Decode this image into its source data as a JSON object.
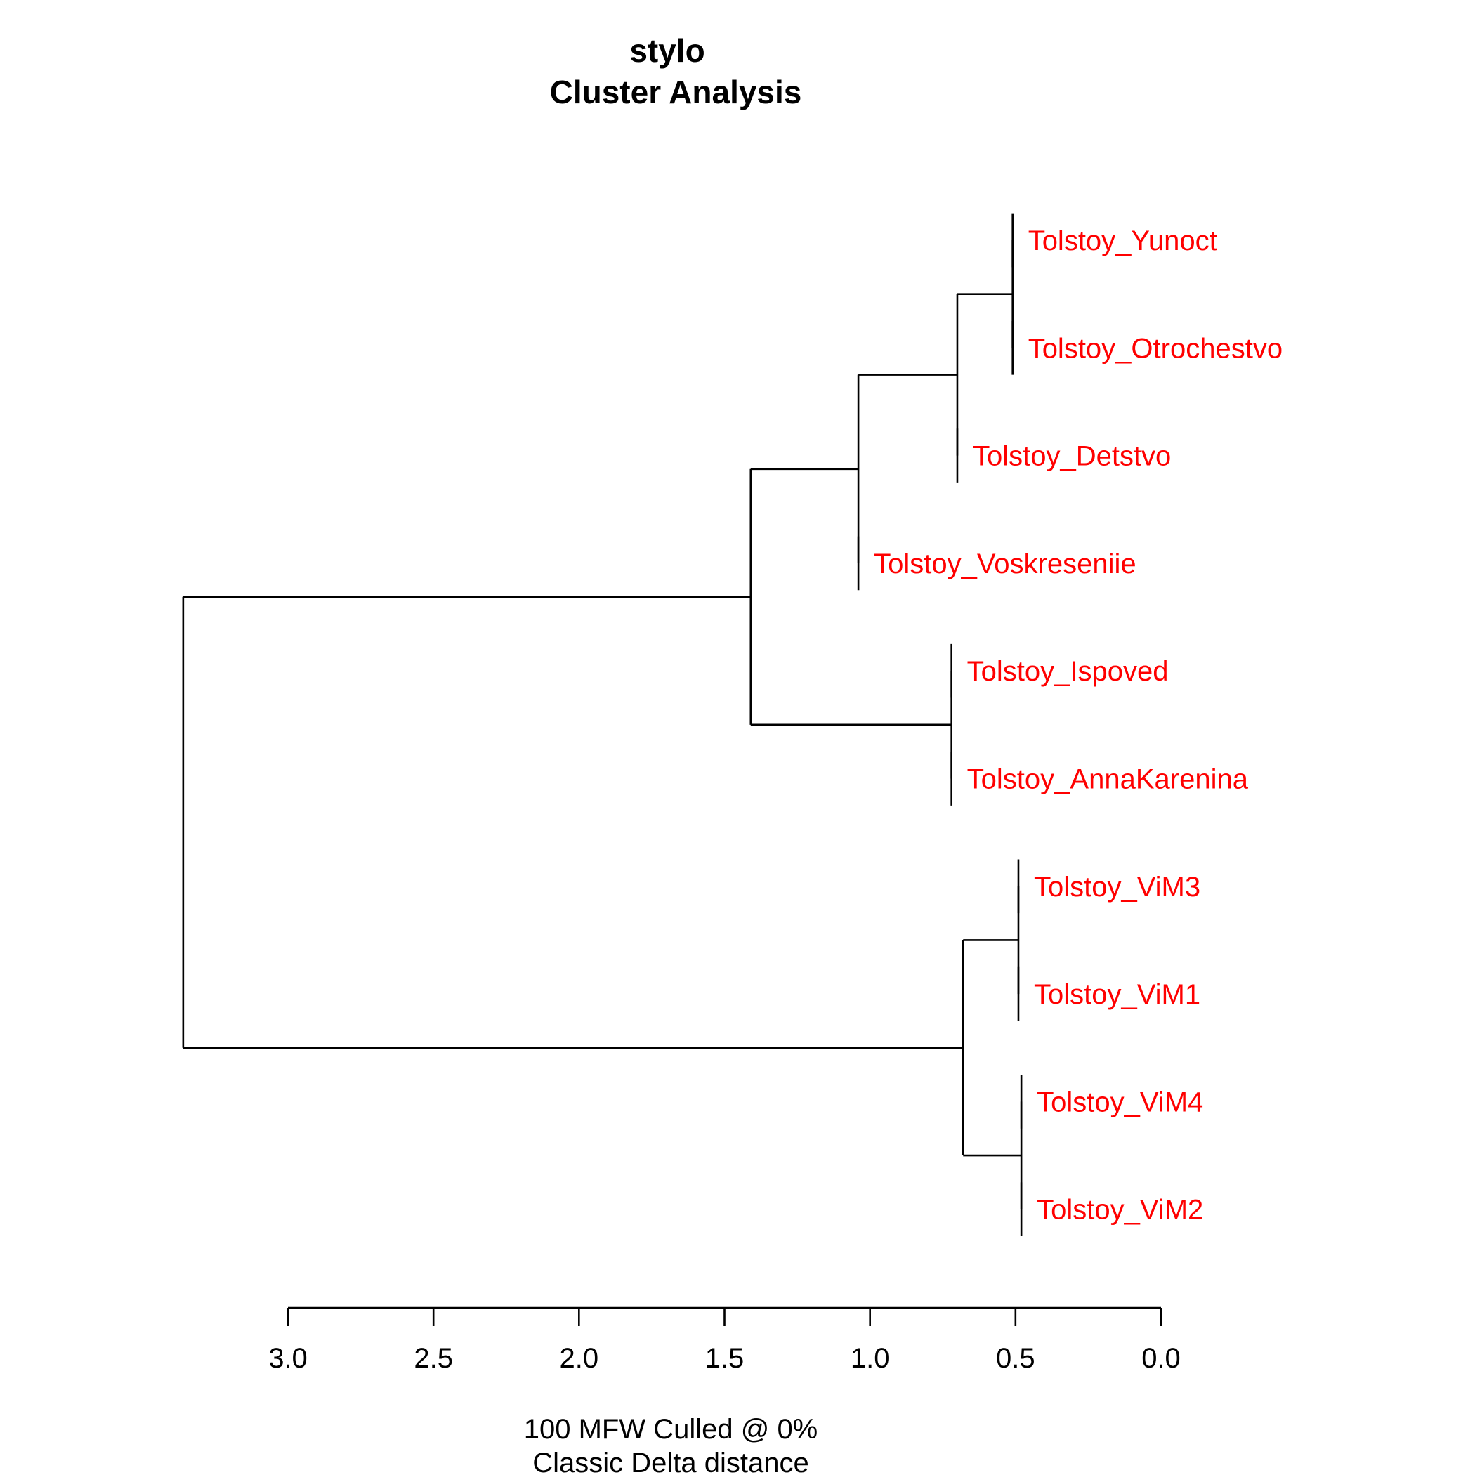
{
  "chart_data": {
    "type": "dendrogram",
    "title": "stylo",
    "subtitle": "Cluster Analysis",
    "xlabel_line1": "100 MFW  Culled @ 0%",
    "xlabel_line2": "Classic Delta distance",
    "xlim": [
      3.0,
      0.0
    ],
    "ticks": [
      {
        "value": 3.0,
        "label": "3.0"
      },
      {
        "value": 2.5,
        "label": "2.5"
      },
      {
        "value": 2.0,
        "label": "2.0"
      },
      {
        "value": 1.5,
        "label": "1.5"
      },
      {
        "value": 1.0,
        "label": "1.0"
      },
      {
        "value": 0.5,
        "label": "0.5"
      },
      {
        "value": 0.0,
        "label": "0.0"
      }
    ],
    "label_color": "#ff0000",
    "line_color": "#000000",
    "leaves": [
      "Tolstoy_Yunoct",
      "Tolstoy_Otrochestvo",
      "Tolstoy_Detstvo",
      "Tolstoy_Voskreseniie",
      "Tolstoy_Ispoved",
      "Tolstoy_AnnaKarenina",
      "Tolstoy_ViM3",
      "Tolstoy_ViM1",
      "Tolstoy_ViM4",
      "Tolstoy_ViM2"
    ],
    "leaf_heights": [
      0.51,
      0.51,
      0.7,
      1.04,
      0.72,
      0.72,
      0.49,
      0.49,
      0.48,
      0.48
    ],
    "merges": [
      {
        "id": "m1",
        "children": [
          "L0",
          "L1"
        ],
        "height": 0.51
      },
      {
        "id": "m2",
        "children": [
          "m1",
          "L2"
        ],
        "height": 0.7
      },
      {
        "id": "m3",
        "children": [
          "m2",
          "L3"
        ],
        "height": 1.04
      },
      {
        "id": "m4",
        "children": [
          "L4",
          "L5"
        ],
        "height": 0.72
      },
      {
        "id": "m5",
        "children": [
          "m3",
          "m4"
        ],
        "height": 1.41
      },
      {
        "id": "m6",
        "children": [
          "L6",
          "L7"
        ],
        "height": 0.49
      },
      {
        "id": "m7",
        "children": [
          "L8",
          "L9"
        ],
        "height": 0.48
      },
      {
        "id": "m8",
        "children": [
          "m6",
          "m7"
        ],
        "height": 0.68
      },
      {
        "id": "m9",
        "children": [
          "m5",
          "m8"
        ],
        "height": 3.36
      }
    ]
  }
}
